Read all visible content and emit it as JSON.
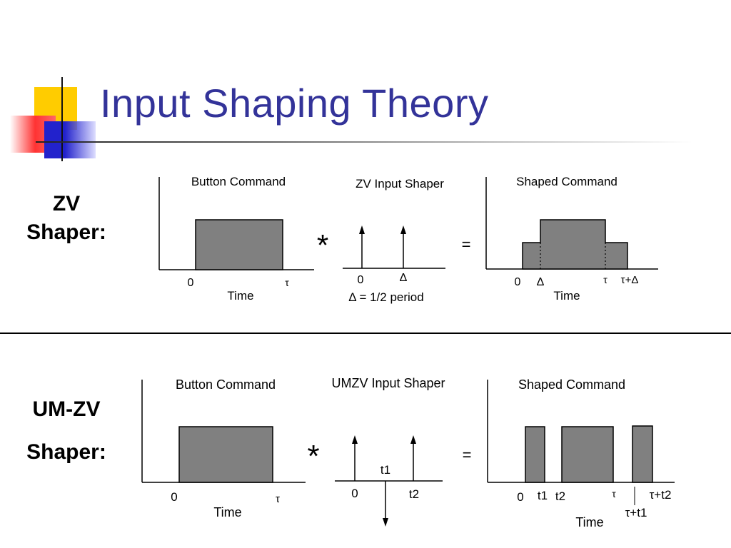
{
  "slide": {
    "title": "Input Shaping Theory"
  },
  "zv": {
    "label_line1": "ZV",
    "label_line2": "Shaper:",
    "button_command": {
      "title": "Button Command",
      "tick_start": "0",
      "tick_end": "τ",
      "xlabel": "Time"
    },
    "shaper": {
      "title": "ZV Input Shaper",
      "tick_0": "0",
      "tick_delta": "Δ",
      "note": "Δ = 1/2 period"
    },
    "convolve_symbol": "*",
    "equals_symbol": "=",
    "shaped": {
      "title": "Shaped Command",
      "tick_0": "0",
      "tick_delta": "Δ",
      "tick_tau": "τ",
      "tick_tau_delta": "τ+Δ",
      "xlabel": "Time"
    }
  },
  "umzv": {
    "label_line1": "UM-ZV",
    "label_line2": "Shaper:",
    "button_command": {
      "title": "Button Command",
      "tick_start": "0",
      "tick_end": "τ",
      "xlabel": "Time"
    },
    "shaper": {
      "title": "UMZV Input Shaper",
      "tick_0": "0",
      "tick_t1": "t1",
      "tick_t2": "t2"
    },
    "convolve_symbol": "*",
    "equals_symbol": "=",
    "shaped": {
      "title": "Shaped Command",
      "tick_0": "0",
      "tick_t1": "t1",
      "tick_t2": "t2",
      "tick_tau": "τ",
      "tick_tau_t1": "τ+t1",
      "tick_tau_t2": "τ+t2",
      "xlabel": "Time"
    }
  },
  "colors": {
    "title": "#333399",
    "pulse_fill": "#808080"
  }
}
